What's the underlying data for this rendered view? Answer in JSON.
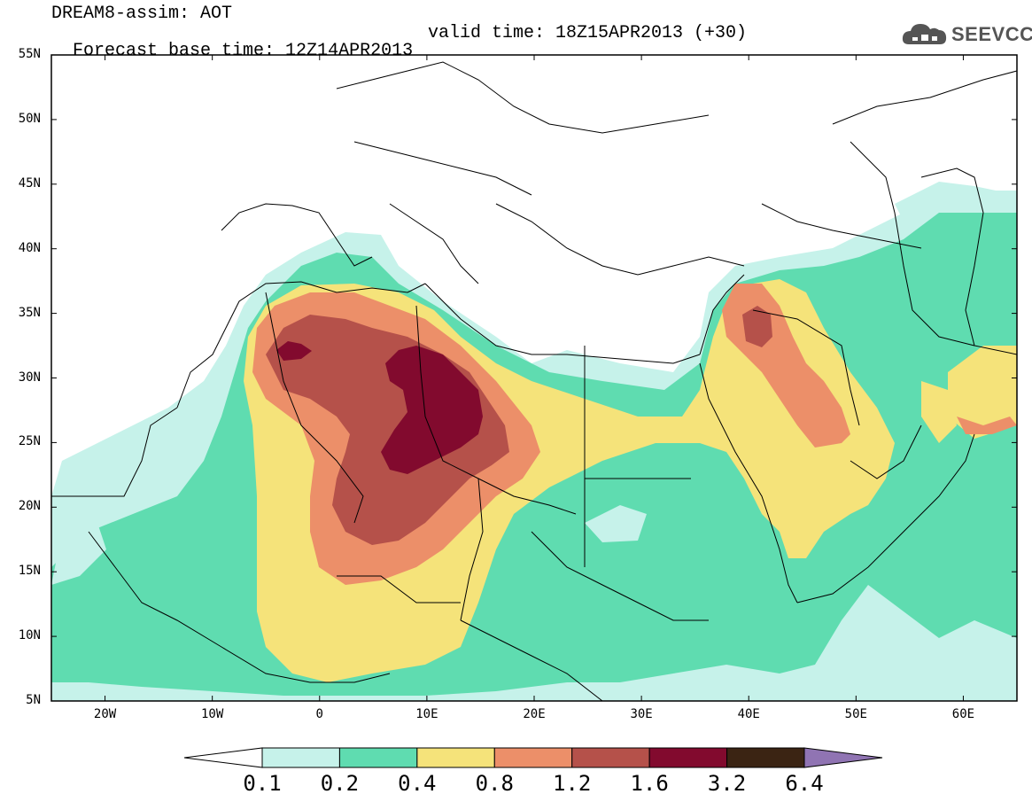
{
  "header": {
    "model_line": "DREAM8-assim: AOT",
    "base_time": "Forecast base time: 12Z14APR2013",
    "valid_time": "valid time: 18Z15APR2013 (+30)"
  },
  "logo": {
    "text": "SEEVCCC",
    "icon": "cloud-icon"
  },
  "map": {
    "lon_range": [
      -25,
      65
    ],
    "lat_range": [
      5,
      55
    ],
    "lat_ticks": [
      "55N",
      "50N",
      "45N",
      "40N",
      "35N",
      "30N",
      "25N",
      "20N",
      "15N",
      "10N",
      "5N"
    ],
    "lon_ticks": [
      "20W",
      "10W",
      "0",
      "10E",
      "20E",
      "30E",
      "40E",
      "50E",
      "60E"
    ]
  },
  "colorbar": {
    "labels": [
      "0.1",
      "0.2",
      "0.4",
      "0.8",
      "1.2",
      "1.6",
      "3.2",
      "6.4"
    ],
    "colors": [
      "#ffffff",
      "#c6f2ea",
      "#5fdcb0",
      "#f5e37a",
      "#ec8f69",
      "#b5514a",
      "#820a2e",
      "#3b2413",
      "#9074b3"
    ]
  }
}
